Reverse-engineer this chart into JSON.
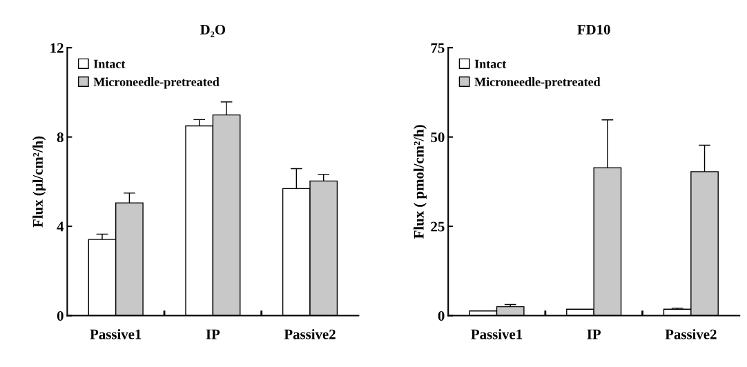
{
  "chart_data": [
    {
      "type": "bar",
      "title": "D₂O",
      "ylabel": "Flux (μl/cm²/h)",
      "categories": [
        "Passive1",
        "IP",
        "Passive2"
      ],
      "ylim": [
        0,
        12
      ],
      "yticks": [
        0,
        4,
        8,
        12
      ],
      "legend": "top left",
      "grid": false,
      "series": [
        {
          "name": "Intact",
          "color": "#ffffff",
          "values": [
            3.41,
            8.5,
            5.69
          ],
          "errors": [
            0.24,
            0.28,
            0.89
          ]
        },
        {
          "name": "Microneedle-pretreated",
          "color": "#c8c8c8",
          "values": [
            5.05,
            8.99,
            6.03
          ],
          "errors": [
            0.44,
            0.58,
            0.3
          ]
        }
      ]
    },
    {
      "type": "bar",
      "title": "FD10",
      "ylabel": "Flux ( pmol/cm²/h)",
      "categories": [
        "Passive1",
        "IP",
        "Passive2"
      ],
      "ylim": [
        0,
        75
      ],
      "yticks": [
        0,
        25,
        50,
        75
      ],
      "legend": "top left",
      "grid": false,
      "series": [
        {
          "name": "Intact",
          "color": "#ffffff",
          "values": [
            1.3,
            1.8,
            1.8
          ],
          "errors": [
            null,
            null,
            0.3
          ]
        },
        {
          "name": "Microneedle-pretreated",
          "color": "#c8c8c8",
          "values": [
            2.5,
            41.4,
            40.3
          ],
          "errors": [
            0.6,
            13.4,
            7.4
          ]
        }
      ]
    }
  ]
}
